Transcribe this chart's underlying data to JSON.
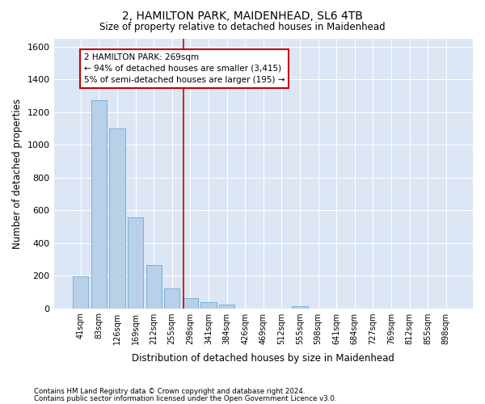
{
  "title1": "2, HAMILTON PARK, MAIDENHEAD, SL6 4TB",
  "title2": "Size of property relative to detached houses in Maidenhead",
  "xlabel": "Distribution of detached houses by size in Maidenhead",
  "ylabel": "Number of detached properties",
  "footnote1": "Contains HM Land Registry data © Crown copyright and database right 2024.",
  "footnote2": "Contains public sector information licensed under the Open Government Licence v3.0.",
  "annotation_line1": "2 HAMILTON PARK: 269sqm",
  "annotation_line2": "← 94% of detached houses are smaller (3,415)",
  "annotation_line3": "5% of semi-detached houses are larger (195) →",
  "bar_categories": [
    "41sqm",
    "83sqm",
    "126sqm",
    "169sqm",
    "212sqm",
    "255sqm",
    "298sqm",
    "341sqm",
    "384sqm",
    "426sqm",
    "469sqm",
    "512sqm",
    "555sqm",
    "598sqm",
    "641sqm",
    "684sqm",
    "727sqm",
    "769sqm",
    "812sqm",
    "855sqm",
    "898sqm"
  ],
  "bar_values": [
    197,
    1270,
    1097,
    554,
    265,
    121,
    60,
    35,
    22,
    0,
    0,
    0,
    14,
    0,
    0,
    0,
    0,
    0,
    0,
    0,
    0
  ],
  "bar_color": "#b8d0e8",
  "bar_edge_color": "#6aaad4",
  "vline_color": "#cc0000",
  "vline_x": 5.62,
  "annotation_box_color": "#cc0000",
  "background_color": "#dce6f5",
  "grid_color": "#ffffff",
  "ylim": [
    0,
    1650
  ],
  "yticks": [
    0,
    200,
    400,
    600,
    800,
    1000,
    1200,
    1400,
    1600
  ]
}
